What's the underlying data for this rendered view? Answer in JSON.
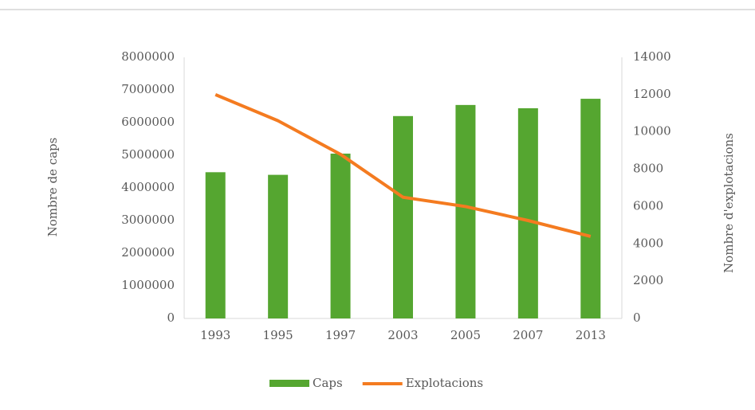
{
  "chart_data": {
    "type": "bar-line",
    "categories": [
      "1993",
      "1995",
      "1997",
      "2003",
      "2005",
      "2007",
      "2013"
    ],
    "series": [
      {
        "name": "Caps",
        "type": "bar",
        "color": "#55a630",
        "values": [
          4480000,
          4400000,
          5050000,
          6200000,
          6540000,
          6440000,
          6730000
        ]
      },
      {
        "name": "Explotacions",
        "type": "line",
        "axis": "y2",
        "color": "#f47b20",
        "values": [
          12000,
          10600,
          8800,
          6500,
          6000,
          5250,
          4400
        ]
      }
    ],
    "ylabel": "Nombre de caps",
    "y2label": "Nombre d'explotacions",
    "ylim": [
      0,
      8000000
    ],
    "yticks": [
      0,
      1000000,
      2000000,
      3000000,
      4000000,
      5000000,
      6000000,
      7000000,
      8000000
    ],
    "y2lim": [
      0,
      14000
    ],
    "y2ticks": [
      0,
      2000,
      4000,
      6000,
      8000,
      10000,
      12000,
      14000
    ],
    "grid": false,
    "legend": "bottom"
  }
}
